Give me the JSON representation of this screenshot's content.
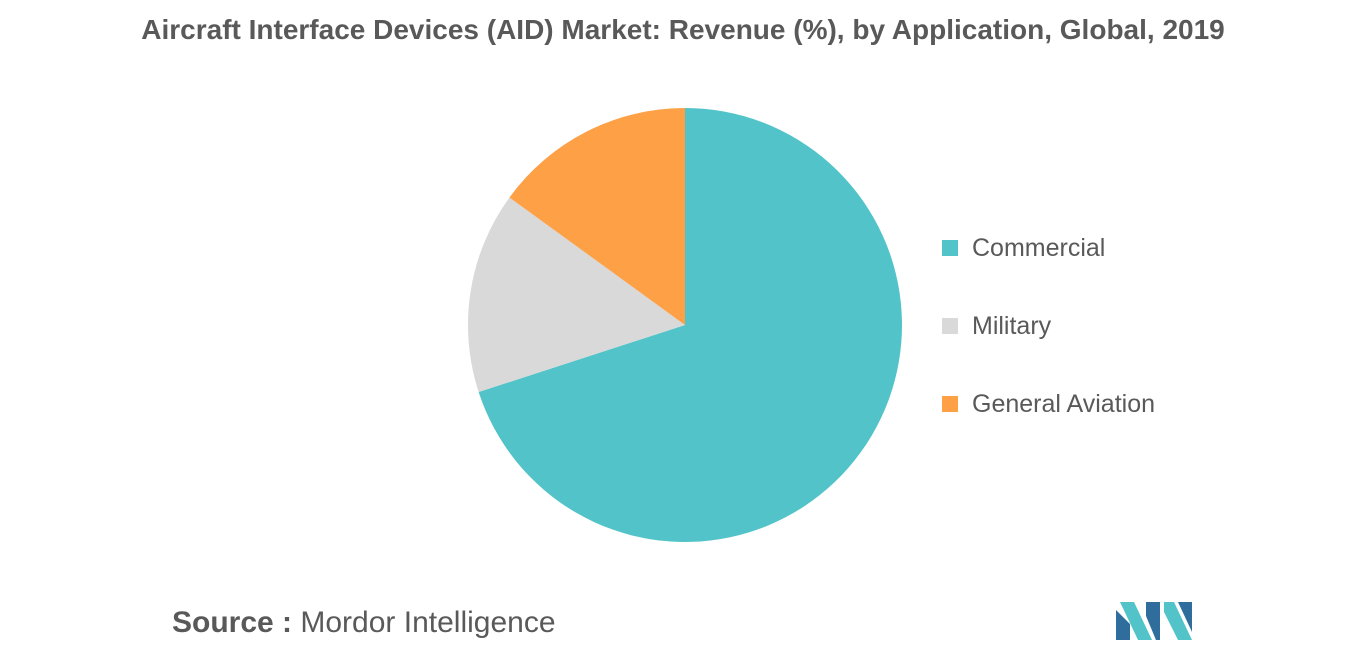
{
  "chart_data": {
    "type": "pie",
    "title": "Aircraft Interface Devices (AID) Market: Revenue (%), by Application, Global, 2019",
    "categories": [
      "Commercial",
      "Military",
      "General Aviation"
    ],
    "values": [
      70,
      15,
      15
    ],
    "colors": [
      "#52C4C9",
      "#D9D9D9",
      "#FDA046"
    ],
    "start_angle_deg": 0,
    "direction": "clockwise",
    "legend_position": "right"
  },
  "source": {
    "prefix": "Source :",
    "name": "Mordor Intelligence"
  }
}
